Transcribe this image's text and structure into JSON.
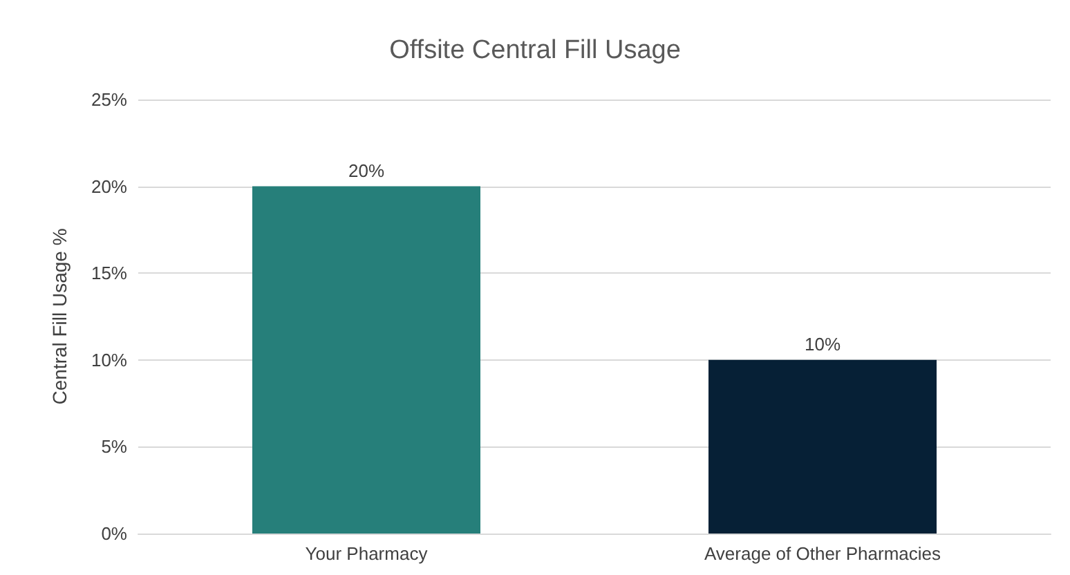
{
  "chart_data": {
    "type": "bar",
    "title": "Offsite Central Fill Usage",
    "ylabel": "Central Fill Usage %",
    "categories": [
      "Your Pharmacy",
      "Average of Other Pharmacies"
    ],
    "values": [
      20,
      10
    ],
    "colors": [
      "#267f7a",
      "#062036"
    ],
    "value_labels": [
      "20%",
      "10%"
    ],
    "ylim": [
      0,
      25
    ],
    "yticks": [
      {
        "value": 0,
        "label": "0%"
      },
      {
        "value": 5,
        "label": "5%"
      },
      {
        "value": 10,
        "label": "10%"
      },
      {
        "value": 15,
        "label": "15%"
      },
      {
        "value": 20,
        "label": "20%"
      },
      {
        "value": 25,
        "label": "25%"
      }
    ],
    "grid": "y"
  }
}
